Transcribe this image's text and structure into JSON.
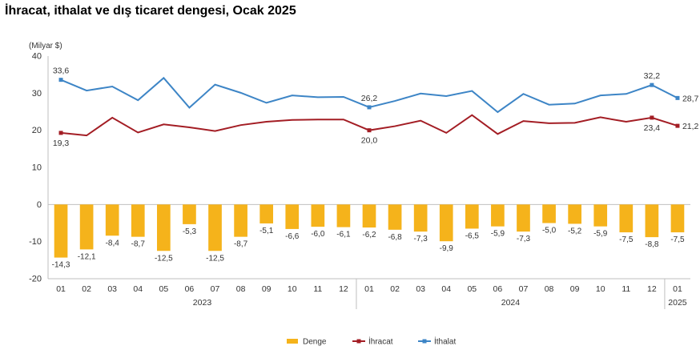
{
  "title": "İhracat, ithalat ve dış ticaret dengesi, Ocak 2025",
  "chart_data": {
    "type": "bar",
    "ylabel": "(Milyar $)",
    "ylim": [
      -20,
      40
    ],
    "yticks": [
      -20,
      -10,
      0,
      10,
      20,
      30,
      40
    ],
    "categories": [
      "01",
      "02",
      "03",
      "04",
      "05",
      "06",
      "07",
      "08",
      "09",
      "10",
      "11",
      "12",
      "01",
      "02",
      "03",
      "04",
      "05",
      "06",
      "07",
      "08",
      "09",
      "10",
      "11",
      "12",
      "01"
    ],
    "year_groups": [
      {
        "label": "2023",
        "start": 0,
        "end": 11
      },
      {
        "label": "2024",
        "start": 12,
        "end": 23
      },
      {
        "label": "2025",
        "start": 24,
        "end": 24
      }
    ],
    "legend_position": "bottom",
    "series": [
      {
        "name": "Denge",
        "type": "bar",
        "color": "#f5b31b",
        "values": [
          -14.3,
          -12.1,
          -8.4,
          -8.7,
          -12.5,
          -5.3,
          -12.5,
          -8.7,
          -5.1,
          -6.6,
          -6.0,
          -6.1,
          -6.2,
          -6.8,
          -7.3,
          -9.9,
          -6.5,
          -5.9,
          -7.3,
          -5.0,
          -5.2,
          -5.9,
          -7.5,
          -8.8,
          -7.5
        ],
        "labels": [
          "-14,3",
          "-12,1",
          "-8,4",
          "-8,7",
          "-12,5",
          "-5,3",
          "-12,5",
          "-8,7",
          "-5,1",
          "-6,6",
          "-6,0",
          "-6,1",
          "-6,2",
          "-6,8",
          "-7,3",
          "-9,9",
          "-6,5",
          "-5,9",
          "-7,3",
          "-5,0",
          "-5,2",
          "-5,9",
          "-7,5",
          "-8,8",
          "-7,5"
        ]
      },
      {
        "name": "İhracat",
        "type": "line",
        "color": "#a31d24",
        "values": [
          19.3,
          18.6,
          23.4,
          19.4,
          21.6,
          20.8,
          19.8,
          21.4,
          22.3,
          22.8,
          22.9,
          22.9,
          20.0,
          21.1,
          22.6,
          19.3,
          24.1,
          19.0,
          22.5,
          21.9,
          22.0,
          23.5,
          22.3,
          23.4,
          21.2
        ],
        "labels": [
          {
            "i": 0,
            "text": "19,3",
            "pos": "below"
          },
          {
            "i": 12,
            "text": "20,0",
            "pos": "below"
          },
          {
            "i": 23,
            "text": "23,4",
            "pos": "below"
          },
          {
            "i": 24,
            "text": "21,2",
            "pos": "right"
          }
        ]
      },
      {
        "name": "İthalat",
        "type": "line",
        "color": "#3d85c6",
        "values": [
          33.6,
          30.7,
          31.8,
          28.1,
          34.1,
          26.1,
          32.3,
          30.1,
          27.4,
          29.4,
          28.9,
          29.0,
          26.2,
          27.9,
          29.9,
          29.2,
          30.6,
          24.9,
          29.8,
          26.9,
          27.2,
          29.4,
          29.8,
          32.2,
          28.7
        ],
        "labels": [
          {
            "i": 0,
            "text": "33,6",
            "pos": "above"
          },
          {
            "i": 12,
            "text": "26,2",
            "pos": "above"
          },
          {
            "i": 23,
            "text": "32,2",
            "pos": "above"
          },
          {
            "i": 24,
            "text": "28,7",
            "pos": "right"
          }
        ]
      }
    ]
  }
}
